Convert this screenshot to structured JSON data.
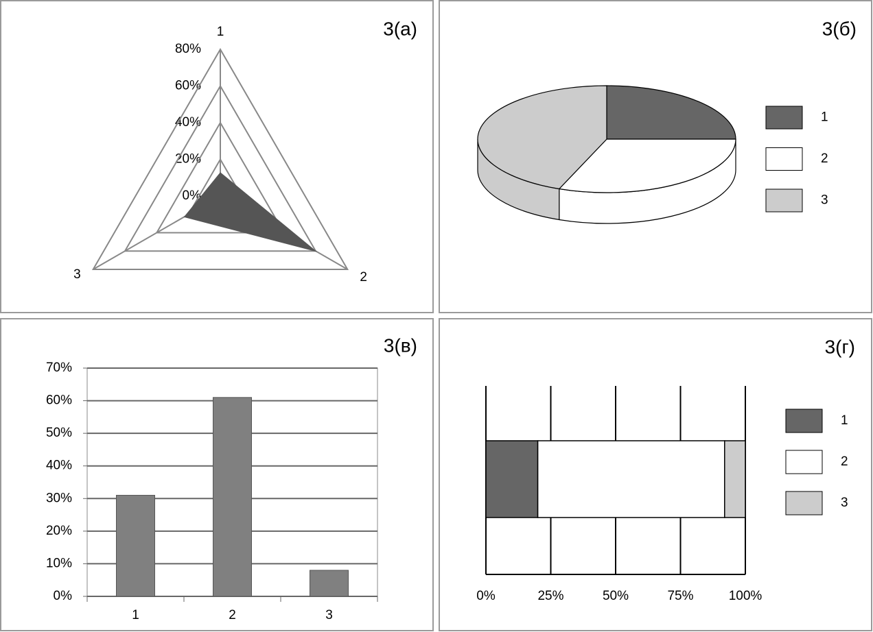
{
  "chart_data": [
    {
      "type": "radar",
      "title": "3(а)",
      "categories": [
        "1",
        "2",
        "3"
      ],
      "values": [
        13,
        61,
        23
      ],
      "color": "#555555",
      "rlim": [
        0,
        80
      ],
      "rticks": [
        {
          "value": 0,
          "label": "0%"
        },
        {
          "value": 20,
          "label": "20%"
        },
        {
          "value": 40,
          "label": "40%"
        },
        {
          "value": 60,
          "label": "60%"
        },
        {
          "value": 80,
          "label": "80%"
        }
      ]
    },
    {
      "type": "pie3d",
      "title": "3(б)",
      "categories": [
        "1",
        "2",
        "3"
      ],
      "values": [
        25,
        31,
        44
      ],
      "colors": [
        "#666666",
        "#ffffff",
        "#cccccc"
      ],
      "legend": "right"
    },
    {
      "type": "bar",
      "title": "3(в)",
      "categories": [
        "1",
        "2",
        "3"
      ],
      "values": [
        31,
        61,
        8
      ],
      "color": "#808080",
      "ylim": [
        0,
        70
      ],
      "yticks": [
        {
          "value": 0,
          "label": "0%"
        },
        {
          "value": 10,
          "label": "10%"
        },
        {
          "value": 20,
          "label": "20%"
        },
        {
          "value": 30,
          "label": "30%"
        },
        {
          "value": 40,
          "label": "40%"
        },
        {
          "value": 50,
          "label": "50%"
        },
        {
          "value": 60,
          "label": "60%"
        },
        {
          "value": 70,
          "label": "70%"
        }
      ],
      "grid": true
    },
    {
      "type": "stacked-bar-h",
      "title": "3(г)",
      "series": [
        {
          "name": "1",
          "color": "#666666",
          "values": [
            20
          ]
        },
        {
          "name": "2",
          "color": "#ffffff",
          "values": [
            72
          ]
        },
        {
          "name": "3",
          "color": "#cccccc",
          "values": [
            8
          ]
        }
      ],
      "xlim": [
        0,
        100
      ],
      "xticks": [
        {
          "value": 0,
          "label": "0%"
        },
        {
          "value": 25,
          "label": "25%"
        },
        {
          "value": 50,
          "label": "50%"
        },
        {
          "value": 75,
          "label": "75%"
        },
        {
          "value": 100,
          "label": "100%"
        }
      ],
      "grid": true,
      "legend": "right"
    }
  ]
}
